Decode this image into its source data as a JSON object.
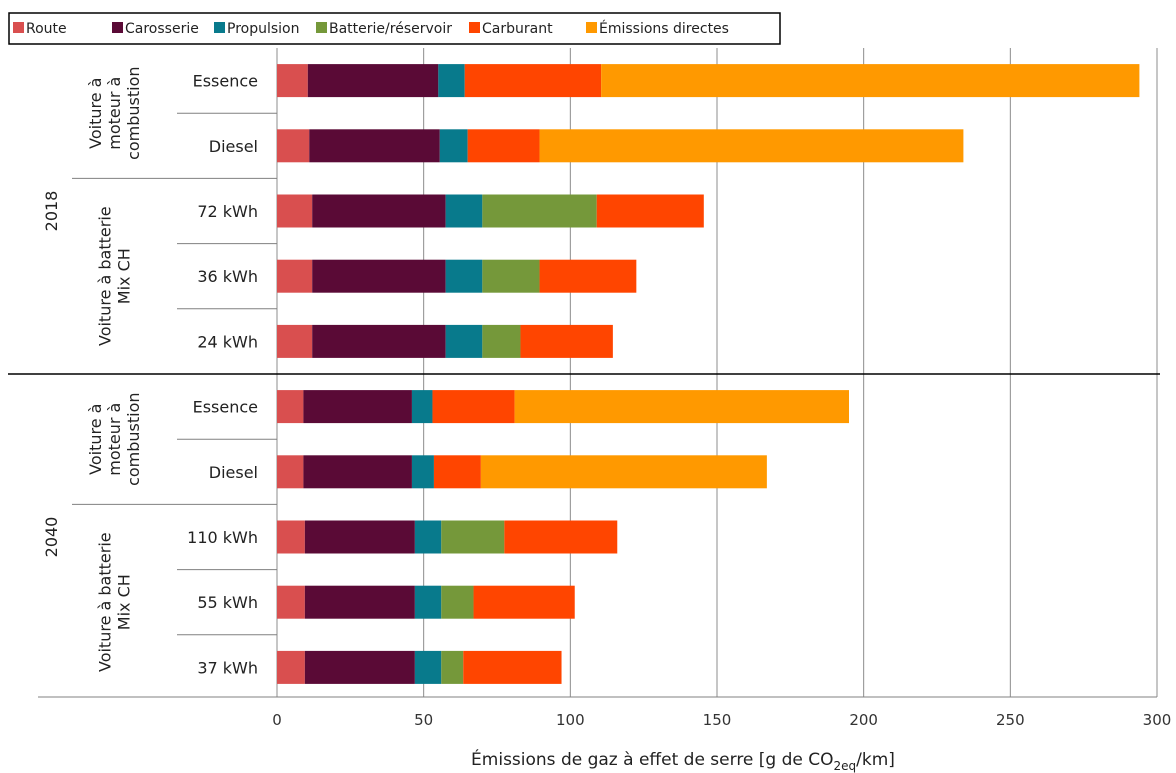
{
  "chart_data": {
    "type": "bar",
    "orientation": "horizontal",
    "stacked": true,
    "xlabel": "Émissions de gaz à effet de serre [g de CO2eq/km]",
    "xlabel_parts": {
      "before": "Émissions de gaz à effet de serre [g de CO",
      "sub": "2eq",
      "after": "/km]"
    },
    "xlim": [
      0,
      300
    ],
    "xticks": [
      0,
      50,
      100,
      150,
      200,
      250,
      300
    ],
    "grid": true,
    "legend_position": "top",
    "series": [
      {
        "name": "Route",
        "color": "#d94f4f"
      },
      {
        "name": "Carosserie",
        "color": "#5a0a36"
      },
      {
        "name": "Propulsion",
        "color": "#087a8c"
      },
      {
        "name": "Batterie/réservoir",
        "color": "#75983a"
      },
      {
        "name": "Carburant",
        "color": "#ff4500"
      },
      {
        "name": "Émissions directes",
        "color": "#ff9900"
      }
    ],
    "years": [
      {
        "label": "2018",
        "groups": [
          {
            "label_lines": [
              "Voiture à",
              "moteur à",
              "combustion"
            ],
            "bars": [
              {
                "label": "Essence",
                "values": [
                  10.5,
                  44.5,
                  9,
                  0,
                  46.5,
                  183.5
                ]
              },
              {
                "label": "Diesel",
                "values": [
                  11,
                  44.5,
                  9.5,
                  0,
                  24.5,
                  144.5
                ]
              }
            ]
          },
          {
            "label_lines": [
              "Voiture à batterie",
              "Mix CH"
            ],
            "bars": [
              {
                "label": "72 kWh",
                "values": [
                  12,
                  45.5,
                  12.5,
                  39,
                  36.5,
                  0
                ]
              },
              {
                "label": "36 kWh",
                "values": [
                  12,
                  45.5,
                  12.5,
                  19.5,
                  33,
                  0
                ]
              },
              {
                "label": "24 kWh",
                "values": [
                  12,
                  45.5,
                  12.5,
                  13,
                  31.5,
                  0
                ]
              }
            ]
          }
        ]
      },
      {
        "label": "2040",
        "groups": [
          {
            "label_lines": [
              "Voiture à",
              "moteur à",
              "combustion"
            ],
            "bars": [
              {
                "label": "Essence",
                "values": [
                  9,
                  37,
                  7,
                  0,
                  28,
                  114
                ]
              },
              {
                "label": "Diesel",
                "values": [
                  9,
                  37,
                  7.5,
                  0,
                  16,
                  97.5
                ]
              }
            ]
          },
          {
            "label_lines": [
              "Voiture à batterie",
              "Mix CH"
            ],
            "bars": [
              {
                "label": "110 kWh",
                "values": [
                  9.5,
                  37.5,
                  9,
                  21.5,
                  38.5,
                  0
                ]
              },
              {
                "label": "55 kWh",
                "values": [
                  9.5,
                  37.5,
                  9,
                  11,
                  34.5,
                  0
                ]
              },
              {
                "label": "37 kWh",
                "values": [
                  9.5,
                  37.5,
                  9,
                  7.5,
                  33.5,
                  0
                ]
              }
            ]
          }
        ]
      }
    ]
  }
}
